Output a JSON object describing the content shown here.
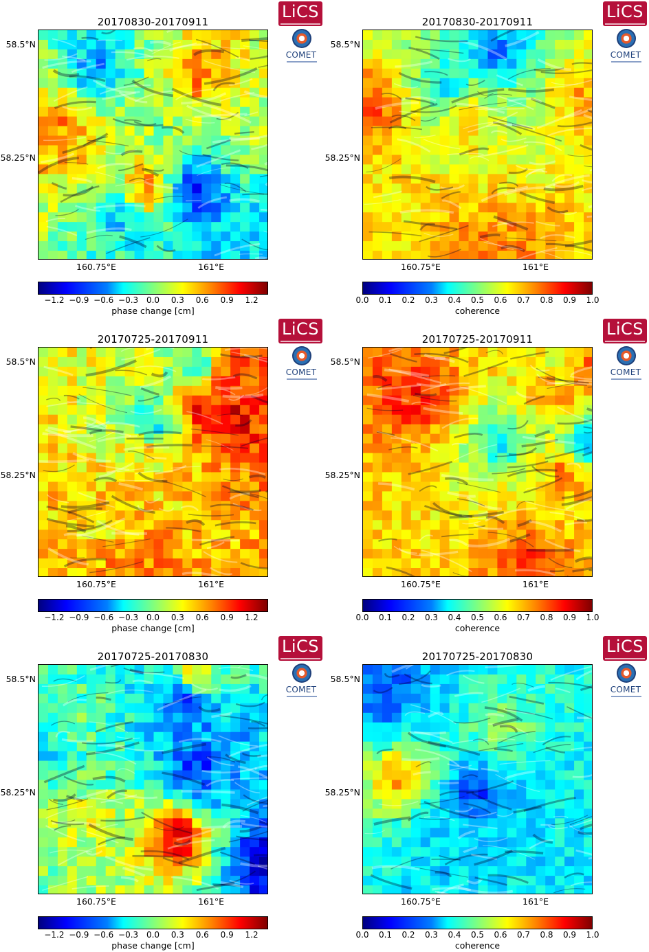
{
  "logos": {
    "lics": "LiCS",
    "comet": "COMET"
  },
  "axes": {
    "lat_labels": [
      "58.5°N",
      "58.25°N"
    ],
    "lon_labels": [
      "160.75°E",
      "161°E"
    ]
  },
  "colorbars": {
    "phase": {
      "label": "phase change [cm]",
      "ticks": [
        "−1.2",
        "−0.9",
        "−0.6",
        "−0.3",
        "0.0",
        "0.3",
        "0.6",
        "0.9",
        "1.2"
      ],
      "range": [
        -1.4,
        1.4
      ]
    },
    "coherence": {
      "label": "coherence",
      "ticks": [
        "0.0",
        "0.1",
        "0.2",
        "0.3",
        "0.4",
        "0.5",
        "0.6",
        "0.7",
        "0.8",
        "0.9",
        "1.0"
      ],
      "range": [
        0.0,
        1.0
      ]
    }
  },
  "panels": [
    {
      "title": "20170830-20170911",
      "kind": "phase"
    },
    {
      "title": "20170830-20170911",
      "kind": "coherence"
    },
    {
      "title": "20170725-20170911",
      "kind": "phase"
    },
    {
      "title": "20170725-20170911",
      "kind": "coherence"
    },
    {
      "title": "20170725-20170830",
      "kind": "phase"
    },
    {
      "title": "20170725-20170830",
      "kind": "coherence"
    }
  ]
}
